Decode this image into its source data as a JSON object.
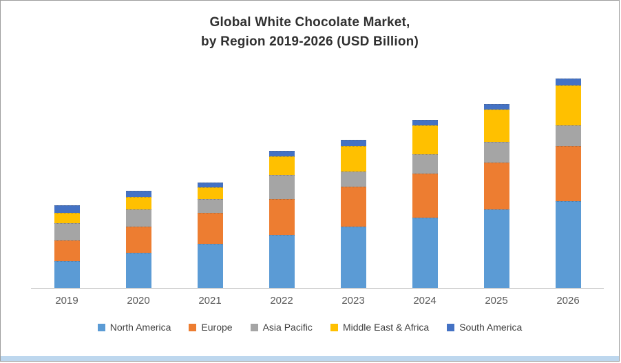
{
  "page": {
    "bottom_strip_color": "#bdd7ee"
  },
  "chart_data": {
    "type": "bar",
    "stacked": true,
    "title_lines": [
      "Global White Chocolate Market,",
      "by Region 2019-2026 (USD Billion)"
    ],
    "xlabel": "",
    "ylabel": "",
    "units": "USD Billion",
    "grid": false,
    "y_axis_labels_visible": false,
    "legend_position": "bottom",
    "ylim": [
      0,
      33
    ],
    "categories": [
      "2019",
      "2020",
      "2021",
      "2022",
      "2023",
      "2024",
      "2025",
      "2026"
    ],
    "series": [
      {
        "name": "North America",
        "color": "#5B9BD5",
        "pattern": "solid",
        "values": [
          3.9,
          5.1,
          6.4,
          7.7,
          8.9,
          10.2,
          11.4,
          12.6
        ]
      },
      {
        "name": "Europe",
        "color": "#ED7D31",
        "pattern": "solid",
        "values": [
          3.0,
          3.8,
          4.5,
          5.2,
          5.8,
          6.4,
          6.8,
          8.0
        ]
      },
      {
        "name": "Asia Pacific",
        "color": "#A5A5A5",
        "pattern": "dotted",
        "values": [
          2.5,
          2.5,
          2.0,
          3.5,
          2.2,
          2.8,
          3.0,
          3.0
        ]
      },
      {
        "name": "Middle East & Africa",
        "color": "#FFC000",
        "pattern": "solid",
        "values": [
          1.5,
          1.8,
          1.7,
          2.7,
          3.7,
          4.2,
          4.7,
          5.8
        ]
      },
      {
        "name": "South America",
        "color": "#4472C4",
        "pattern": "solid",
        "values": [
          1.1,
          0.9,
          0.7,
          0.8,
          0.9,
          0.8,
          0.8,
          1.0
        ]
      }
    ]
  }
}
